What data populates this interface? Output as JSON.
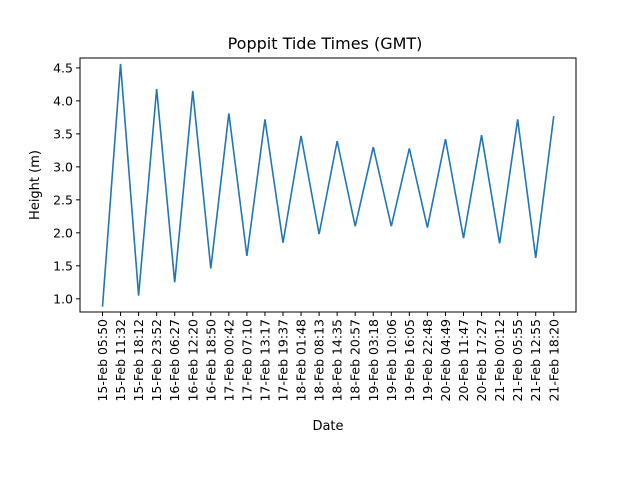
{
  "chart_data": {
    "type": "line",
    "title": "Poppit Tide Times (GMT)",
    "xlabel": "Date",
    "ylabel": "Height (m)",
    "ylim": [
      0.8,
      4.65
    ],
    "yticks": [
      "1.0",
      "1.5",
      "2.0",
      "2.5",
      "3.0",
      "3.5",
      "4.0",
      "4.5"
    ],
    "grid": false,
    "line_color": "#1f77b4",
    "x": [
      "15-Feb 05:50",
      "15-Feb 11:32",
      "15-Feb 18:12",
      "15-Feb 23:52",
      "16-Feb 06:27",
      "16-Feb 12:20",
      "16-Feb 18:50",
      "17-Feb 00:42",
      "17-Feb 07:10",
      "17-Feb 13:17",
      "17-Feb 19:37",
      "18-Feb 01:48",
      "18-Feb 08:13",
      "18-Feb 14:35",
      "18-Feb 20:57",
      "19-Feb 03:18",
      "19-Feb 10:06",
      "19-Feb 16:05",
      "19-Feb 22:48",
      "20-Feb 04:49",
      "20-Feb 11:47",
      "20-Feb 17:27",
      "21-Feb 00:12",
      "21-Feb 05:55",
      "21-Feb 12:55",
      "21-Feb 18:20"
    ],
    "series": [
      {
        "values": [
          0.88,
          4.56,
          1.05,
          4.18,
          1.25,
          4.15,
          1.46,
          3.81,
          1.65,
          3.72,
          1.85,
          3.47,
          1.98,
          3.39,
          2.1,
          3.3,
          2.1,
          3.28,
          2.08,
          3.42,
          1.92,
          3.48,
          1.84,
          3.72,
          1.62,
          3.77
        ]
      }
    ]
  }
}
